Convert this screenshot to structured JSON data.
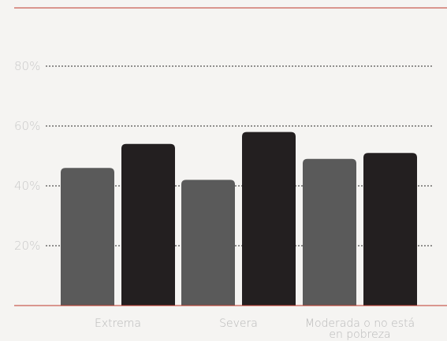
{
  "chart_data": {
    "type": "bar",
    "categories": [
      "Extrema",
      "Severa",
      "Moderada o no está en pobreza"
    ],
    "category_lines": [
      [
        "Extrema"
      ],
      [
        "Severa"
      ],
      [
        "Moderada o no está",
        "en pobreza"
      ]
    ],
    "series": [
      {
        "values": [
          46,
          42,
          49
        ]
      },
      {
        "values": [
          54,
          58,
          51
        ]
      }
    ],
    "yticks": [
      20,
      40,
      60,
      80
    ],
    "ytick_labels": [
      "20%",
      "40%",
      "60%",
      "80%"
    ],
    "ylim": [
      0,
      100
    ],
    "grid": true
  },
  "colors": {
    "series": [
      "#5a5a5a",
      "#231f20"
    ],
    "rule": "#c0392b",
    "grid": "#2a2a2a",
    "background": "#f5f4f2"
  }
}
